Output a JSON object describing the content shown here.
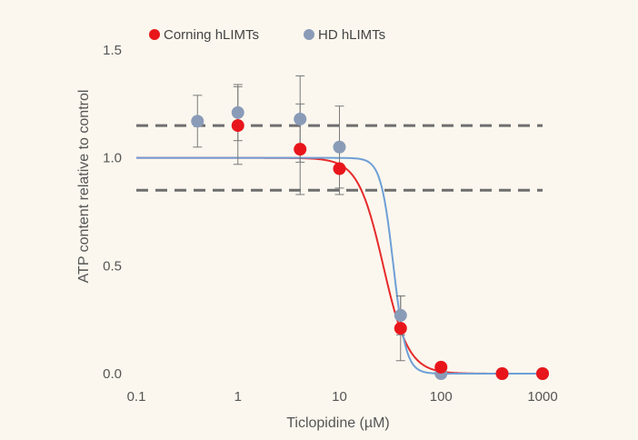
{
  "chart_data": {
    "type": "scatter",
    "xlabel": "Ticlopidine (µM)",
    "ylabel": "ATP content relative to control",
    "x_scale": "log",
    "xlim": [
      0.1,
      1000
    ],
    "ylim": [
      0.0,
      1.5
    ],
    "x_ticks": [
      0.1,
      1,
      10,
      100,
      1000
    ],
    "x_tick_labels": [
      "0.1",
      "1",
      "10",
      "100",
      "1000"
    ],
    "y_ticks": [
      0.0,
      0.5,
      1.0,
      1.5
    ],
    "y_tick_labels": [
      "0.0",
      "0.5",
      "1.0",
      "1.5"
    ],
    "grid": false,
    "legend_position": "top-left",
    "reference_lines": [
      {
        "y": 1.15,
        "style": "dashed"
      },
      {
        "y": 0.85,
        "style": "dashed"
      }
    ],
    "series": [
      {
        "name": "Corning hLIMTs",
        "color": "#e8161b",
        "points": [
          {
            "x": 1,
            "y": 1.15,
            "err": 0.18
          },
          {
            "x": 4.1,
            "y": 1.04,
            "err": 0.21
          },
          {
            "x": 10,
            "y": 0.95,
            "err": 0.12
          },
          {
            "x": 40,
            "y": 0.21,
            "err": 0.15
          },
          {
            "x": 100,
            "y": 0.03,
            "err": 0
          },
          {
            "x": 400,
            "y": 0.0,
            "err": 0
          },
          {
            "x": 1000,
            "y": 0.0,
            "err": 0
          }
        ],
        "fit": {
          "top": 1.0,
          "bottom": 0.0,
          "ic50": 27,
          "hill": 3.5
        }
      },
      {
        "name": "HD hLIMTs",
        "color": "#8a9bb8",
        "points": [
          {
            "x": 0.4,
            "y": 1.17,
            "err": 0.12
          },
          {
            "x": 1,
            "y": 1.21,
            "err": 0.13
          },
          {
            "x": 4.1,
            "y": 1.18,
            "err": 0.2
          },
          {
            "x": 10,
            "y": 1.05,
            "err": 0.19
          },
          {
            "x": 40,
            "y": 0.27,
            "err": 0.09
          },
          {
            "x": 100,
            "y": 0.0,
            "err": 0
          },
          {
            "x": 400,
            "y": 0.0,
            "err": 0
          },
          {
            "x": 1000,
            "y": 0.0,
            "err": 0
          }
        ],
        "fit": {
          "top": 1.0,
          "bottom": 0.0,
          "ic50": 34,
          "hill": 7.0
        }
      }
    ]
  }
}
